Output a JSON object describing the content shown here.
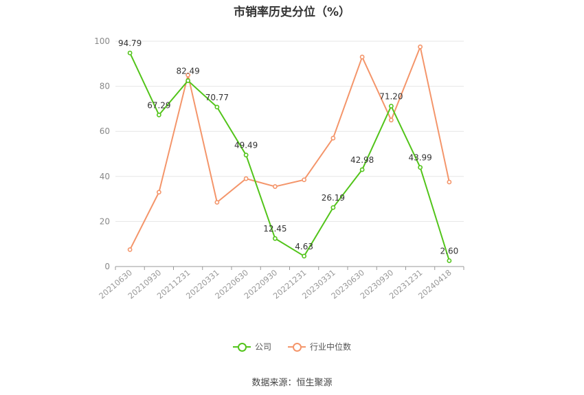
{
  "chart_data": {
    "type": "line",
    "title": "市销率历史分位（%）",
    "categories": [
      "20210630",
      "20210930",
      "20211231",
      "20220331",
      "20220630",
      "20220930",
      "20221231",
      "20230331",
      "20230630",
      "20230930",
      "20231231",
      "20240418"
    ],
    "ylim": [
      0,
      100
    ],
    "yticks": [
      0,
      20,
      40,
      60,
      80,
      100
    ],
    "grid": true,
    "legend_position": "bottom",
    "series": [
      {
        "name": "公司",
        "color": "#52c41a",
        "values": [
          94.79,
          67.29,
          82.49,
          70.77,
          49.49,
          12.45,
          4.63,
          26.19,
          42.98,
          71.2,
          43.99,
          2.6
        ],
        "labels": [
          "94.79",
          "67.29",
          "82.49",
          "70.77",
          "49.49",
          "12.45",
          "4.63",
          "26.19",
          "42.98",
          "71.20",
          "43.99",
          "2.60"
        ]
      },
      {
        "name": "行业中位数",
        "color": "#f4956a",
        "values": [
          7.5,
          33,
          85,
          28.5,
          39,
          35.5,
          38.5,
          57,
          93,
          65,
          97.5,
          37.5
        ]
      }
    ]
  },
  "source": "数据来源：恒生聚源"
}
